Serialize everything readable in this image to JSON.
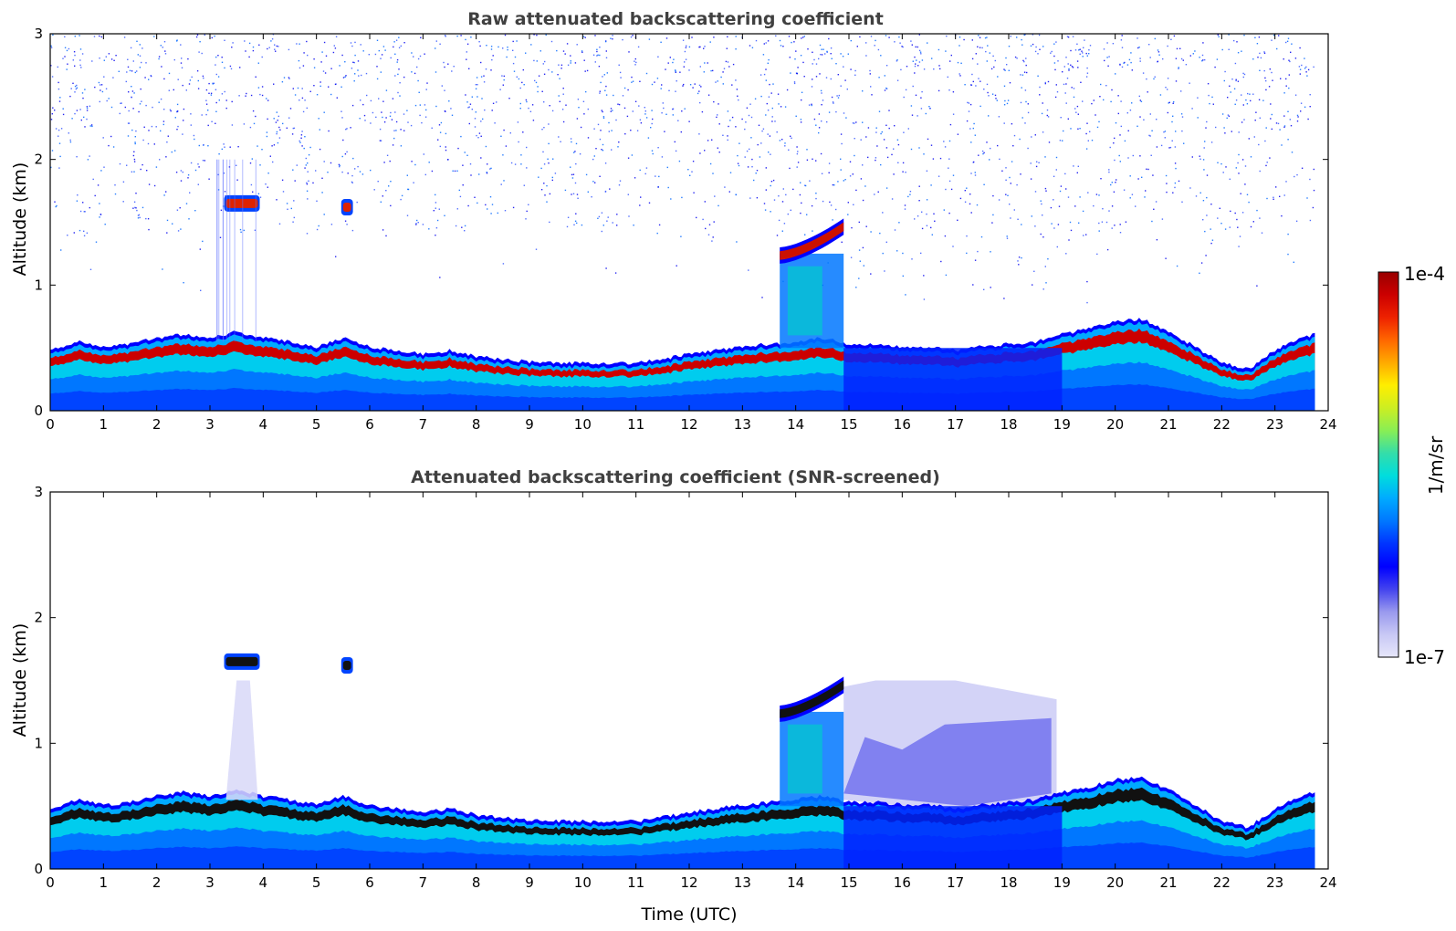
{
  "chart_data": [
    {
      "type": "heatmap",
      "title": "Raw attenuated backscattering coefficient",
      "xlabel": "",
      "ylabel": "Altitude (km)",
      "xlim": [
        0,
        24
      ],
      "ylim": [
        0,
        3
      ],
      "xticks": [
        0,
        1,
        2,
        3,
        4,
        5,
        6,
        7,
        8,
        9,
        10,
        11,
        12,
        13,
        14,
        15,
        16,
        17,
        18,
        19,
        20,
        21,
        22,
        23,
        24
      ],
      "yticks": [
        0,
        1,
        2,
        3
      ],
      "layer_top_km": {
        "x": [
          0,
          0.5,
          1,
          1.5,
          2,
          2.5,
          3,
          3.5,
          4,
          4.5,
          5,
          5.5,
          6,
          6.5,
          7,
          7.5,
          8,
          8.5,
          9,
          9.5,
          10,
          10.5,
          11,
          11.5,
          12,
          12.5,
          13,
          13.5,
          14,
          14.5,
          15,
          15.5,
          16,
          16.5,
          17,
          17.5,
          18,
          18.5,
          19,
          19.5,
          20,
          20.5,
          21,
          21.5,
          22,
          22.5,
          23,
          23.5,
          23.75
        ],
        "y": [
          0.45,
          0.52,
          0.48,
          0.5,
          0.55,
          0.58,
          0.55,
          0.6,
          0.55,
          0.52,
          0.48,
          0.55,
          0.48,
          0.45,
          0.42,
          0.45,
          0.4,
          0.38,
          0.36,
          0.35,
          0.35,
          0.35,
          0.35,
          0.38,
          0.42,
          0.45,
          0.48,
          0.5,
          0.52,
          0.55,
          0.5,
          0.5,
          0.48,
          0.48,
          0.45,
          0.48,
          0.5,
          0.52,
          0.58,
          0.62,
          0.68,
          0.7,
          0.6,
          0.48,
          0.35,
          0.3,
          0.45,
          0.55,
          0.58
        ]
      },
      "features": [
        {
          "x_start": 3.3,
          "x_end": 3.9,
          "altitude_km": 1.65
        },
        {
          "x_start": 5.5,
          "x_end": 5.65,
          "altitude_km": 1.62
        },
        {
          "x_start": 13.7,
          "x_end": 14.9,
          "altitude_km": 1.25,
          "altitude_top_km": 1.48
        }
      ]
    },
    {
      "type": "heatmap",
      "title": "Attenuated backscattering coefficient (SNR-screened)",
      "xlabel": "Time (UTC)",
      "ylabel": "Altitude (km)",
      "xlim": [
        0,
        24
      ],
      "ylim": [
        0,
        3
      ],
      "xticks": [
        0,
        1,
        2,
        3,
        4,
        5,
        6,
        7,
        8,
        9,
        10,
        11,
        12,
        13,
        14,
        15,
        16,
        17,
        18,
        19,
        20,
        21,
        22,
        23,
        24
      ],
      "yticks": [
        0,
        1,
        2,
        3
      ],
      "layer_top_km": {
        "x": [
          0,
          0.5,
          1,
          1.5,
          2,
          2.5,
          3,
          3.5,
          4,
          4.5,
          5,
          5.5,
          6,
          6.5,
          7,
          7.5,
          8,
          8.5,
          9,
          9.5,
          10,
          10.5,
          11,
          11.5,
          12,
          12.5,
          13,
          13.5,
          14,
          14.5,
          15,
          15.5,
          16,
          16.5,
          17,
          17.5,
          18,
          18.5,
          19,
          19.5,
          20,
          20.5,
          21,
          21.5,
          22,
          22.5,
          23,
          23.5,
          23.75
        ],
        "y": [
          0.45,
          0.52,
          0.48,
          0.5,
          0.55,
          0.58,
          0.55,
          0.6,
          0.55,
          0.52,
          0.48,
          0.55,
          0.48,
          0.45,
          0.42,
          0.45,
          0.4,
          0.38,
          0.36,
          0.35,
          0.35,
          0.35,
          0.35,
          0.38,
          0.42,
          0.45,
          0.48,
          0.5,
          0.52,
          0.55,
          0.5,
          0.5,
          0.48,
          0.48,
          0.45,
          0.48,
          0.5,
          0.52,
          0.58,
          0.62,
          0.68,
          0.7,
          0.6,
          0.48,
          0.35,
          0.3,
          0.45,
          0.55,
          0.58
        ]
      },
      "features": [
        {
          "x_start": 3.3,
          "x_end": 3.9,
          "altitude_km": 1.65
        },
        {
          "x_start": 5.5,
          "x_end": 5.65,
          "altitude_km": 1.62
        },
        {
          "x_start": 13.7,
          "x_end": 14.9,
          "altitude_km": 1.25,
          "altitude_top_km": 1.48
        }
      ]
    }
  ],
  "colorbar": {
    "label": "1/m/sr",
    "max_label": "1e-4",
    "min_label": "1e-7",
    "colors": [
      "#e6e6fa",
      "#c8c8f5",
      "#9999ee",
      "#4444ee",
      "#0000ff",
      "#0033ff",
      "#0077ff",
      "#00aaff",
      "#00dddd",
      "#33ddaa",
      "#88ee55",
      "#ccee22",
      "#ffee00",
      "#ffaa00",
      "#ff6600",
      "#ee2200",
      "#cc0000",
      "#990000"
    ]
  }
}
